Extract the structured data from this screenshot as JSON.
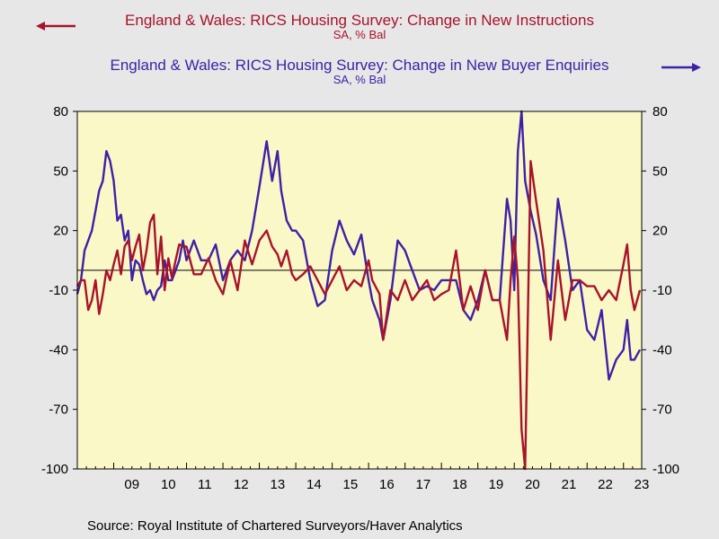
{
  "chart_data": {
    "type": "line",
    "titles": [
      {
        "name": "England & Wales: RICS Housing Survey: Change in New Instructions",
        "units": "SA, % Bal",
        "axis": "left",
        "color": "#a8132a"
      },
      {
        "name": "England & Wales: RICS Housing Survey: Change in New Buyer Enquiries",
        "units": "SA, % Bal",
        "axis": "right",
        "color": "#3d22a6"
      }
    ],
    "yticks": [
      "80",
      "50",
      "20",
      "-10",
      "-40",
      "-70",
      "-100"
    ],
    "ylim": [
      -100,
      80
    ],
    "xticks": [
      "09",
      "10",
      "11",
      "12",
      "13",
      "14",
      "15",
      "16",
      "17",
      "18",
      "19",
      "20",
      "21",
      "22",
      "23"
    ],
    "xlim": [
      2008.0,
      2023.5
    ],
    "reference_line": 0,
    "grid": false,
    "plot_background": "#fbf8c8",
    "series": [
      {
        "name": "England & Wales: RICS Housing Survey: Change in New Instructions",
        "color": "#a8132a",
        "x": [
          2008.0,
          2008.1,
          2008.2,
          2008.3,
          2008.4,
          2008.5,
          2008.6,
          2008.7,
          2008.8,
          2008.9,
          2009.0,
          2009.1,
          2009.2,
          2009.3,
          2009.4,
          2009.5,
          2009.6,
          2009.7,
          2009.8,
          2009.9,
          2010.0,
          2010.1,
          2010.2,
          2010.3,
          2010.4,
          2010.5,
          2010.6,
          2010.7,
          2010.8,
          2010.9,
          2011.0,
          2011.2,
          2011.4,
          2011.6,
          2011.8,
          2012.0,
          2012.2,
          2012.4,
          2012.6,
          2012.8,
          2013.0,
          2013.2,
          2013.35,
          2013.5,
          2013.6,
          2013.75,
          2013.9,
          2014.0,
          2014.2,
          2014.4,
          2014.6,
          2014.8,
          2015.0,
          2015.2,
          2015.4,
          2015.6,
          2015.8,
          2016.0,
          2016.1,
          2016.3,
          2016.4,
          2016.6,
          2016.8,
          2017.0,
          2017.2,
          2017.4,
          2017.6,
          2017.8,
          2018.0,
          2018.2,
          2018.4,
          2018.6,
          2018.8,
          2019.0,
          2019.2,
          2019.4,
          2019.6,
          2019.8,
          2019.9,
          2020.0,
          2020.1,
          2020.2,
          2020.3,
          2020.45,
          2020.6,
          2020.8,
          2021.0,
          2021.2,
          2021.4,
          2021.6,
          2021.8,
          2022.0,
          2022.2,
          2022.4,
          2022.6,
          2022.8,
          2023.0,
          2023.1,
          2023.2,
          2023.3,
          2023.45
        ],
        "values": [
          -8,
          -5,
          -5,
          -20,
          -15,
          -5,
          -22,
          -12,
          0,
          -5,
          3,
          10,
          -2,
          12,
          15,
          5,
          12,
          18,
          0,
          10,
          24,
          28,
          -2,
          17,
          -10,
          6,
          -4,
          5,
          13,
          12,
          12,
          -2,
          -2,
          6,
          -5,
          -12,
          5,
          -10,
          15,
          3,
          15,
          20,
          12,
          8,
          2,
          10,
          -2,
          -5,
          -2,
          2,
          -5,
          -12,
          -5,
          2,
          -10,
          -5,
          -8,
          5,
          -5,
          -12,
          -35,
          -10,
          -15,
          -5,
          -15,
          -10,
          -5,
          -15,
          -12,
          -10,
          10,
          -20,
          -8,
          -20,
          0,
          -15,
          -15,
          -35,
          -5,
          17,
          -5,
          -80,
          -100,
          55,
          35,
          10,
          -35,
          5,
          -25,
          -5,
          -5,
          -8,
          -8,
          -15,
          -10,
          -15,
          3,
          13,
          -10,
          -20,
          -10
        ]
      },
      {
        "name": "England & Wales: RICS Housing Survey: Change in New Buyer Enquiries",
        "color": "#3d22a6",
        "x": [
          2008.0,
          2008.1,
          2008.2,
          2008.3,
          2008.4,
          2008.5,
          2008.6,
          2008.7,
          2008.8,
          2008.9,
          2009.0,
          2009.1,
          2009.2,
          2009.3,
          2009.4,
          2009.5,
          2009.6,
          2009.7,
          2009.8,
          2009.9,
          2010.0,
          2010.1,
          2010.2,
          2010.3,
          2010.4,
          2010.5,
          2010.6,
          2010.7,
          2010.8,
          2010.9,
          2011.0,
          2011.2,
          2011.4,
          2011.6,
          2011.8,
          2012.0,
          2012.2,
          2012.4,
          2012.6,
          2012.8,
          2013.0,
          2013.2,
          2013.35,
          2013.5,
          2013.6,
          2013.75,
          2013.9,
          2014.0,
          2014.2,
          2014.4,
          2014.6,
          2014.8,
          2015.0,
          2015.2,
          2015.4,
          2015.6,
          2015.8,
          2016.0,
          2016.1,
          2016.3,
          2016.4,
          2016.6,
          2016.8,
          2017.0,
          2017.2,
          2017.4,
          2017.6,
          2017.8,
          2018.0,
          2018.2,
          2018.4,
          2018.6,
          2018.8,
          2019.0,
          2019.2,
          2019.4,
          2019.6,
          2019.8,
          2019.9,
          2020.0,
          2020.1,
          2020.2,
          2020.3,
          2020.45,
          2020.6,
          2020.8,
          2021.0,
          2021.2,
          2021.4,
          2021.6,
          2021.8,
          2022.0,
          2022.2,
          2022.4,
          2022.6,
          2022.8,
          2023.0,
          2023.1,
          2023.2,
          2023.3,
          2023.45
        ],
        "values": [
          -12,
          -5,
          10,
          15,
          20,
          30,
          40,
          45,
          60,
          55,
          45,
          25,
          28,
          15,
          20,
          -5,
          5,
          3,
          -5,
          -12,
          -10,
          -15,
          -10,
          -8,
          5,
          -5,
          -5,
          0,
          5,
          15,
          5,
          15,
          5,
          5,
          13,
          -5,
          5,
          10,
          5,
          20,
          42,
          65,
          45,
          60,
          40,
          25,
          20,
          20,
          15,
          -5,
          -18,
          -15,
          10,
          25,
          15,
          8,
          18,
          -5,
          -15,
          -25,
          -35,
          -15,
          15,
          10,
          0,
          -10,
          -8,
          -10,
          -5,
          -5,
          -5,
          -20,
          -25,
          -15,
          0,
          -15,
          -15,
          36,
          25,
          -10,
          60,
          80,
          45,
          30,
          18,
          -5,
          -15,
          36,
          15,
          -10,
          -5,
          -30,
          -35,
          -20,
          -55,
          -45,
          -40,
          -25,
          -45,
          -45,
          -40
        ]
      }
    ]
  },
  "source": "Source:  Royal Institute of Chartered Surveyors/Haver Analytics"
}
